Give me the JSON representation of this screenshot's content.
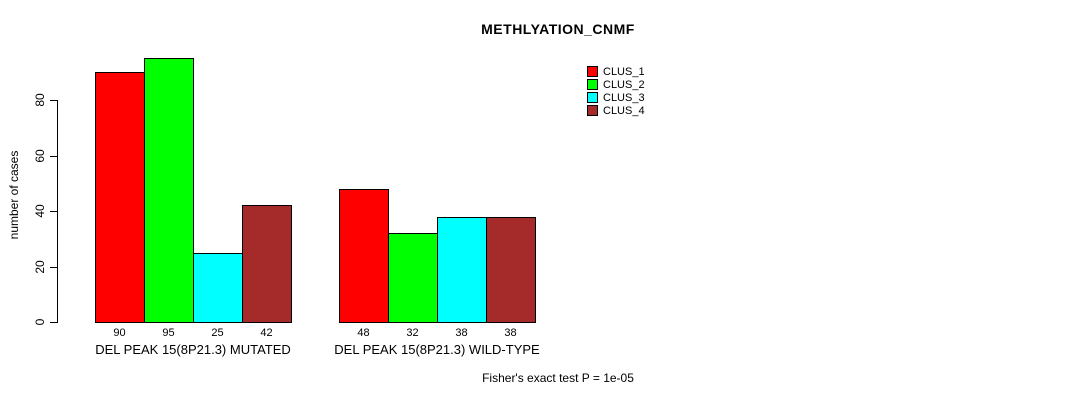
{
  "chart_data": {
    "type": "bar",
    "title": "METHLYATION_CNMF",
    "xlabel": "",
    "ylabel": "number of cases",
    "ylim": [
      0,
      80
    ],
    "yticks": [
      0,
      20,
      40,
      60,
      80
    ],
    "grid": false,
    "legend_position": "top-right",
    "categories": [
      "DEL PEAK 15(8P21.3) MUTATED",
      "DEL PEAK 15(8P21.3) WILD-TYPE"
    ],
    "series": [
      {
        "name": "CLUS_1",
        "color": "#FF0000",
        "values": [
          90,
          48
        ]
      },
      {
        "name": "CLUS_2",
        "color": "#00FF00",
        "values": [
          95,
          32
        ]
      },
      {
        "name": "CLUS_3",
        "color": "#00FFFF",
        "values": [
          25,
          38
        ]
      },
      {
        "name": "CLUS_4",
        "color": "#A52A2A",
        "values": [
          42,
          38
        ]
      }
    ],
    "bar_value_labels": true,
    "footnote": "Fisher's exact test P = 1e-05"
  },
  "colors": {
    "background": "#FFFFFF",
    "axis": "#000000",
    "text": "#000000"
  }
}
